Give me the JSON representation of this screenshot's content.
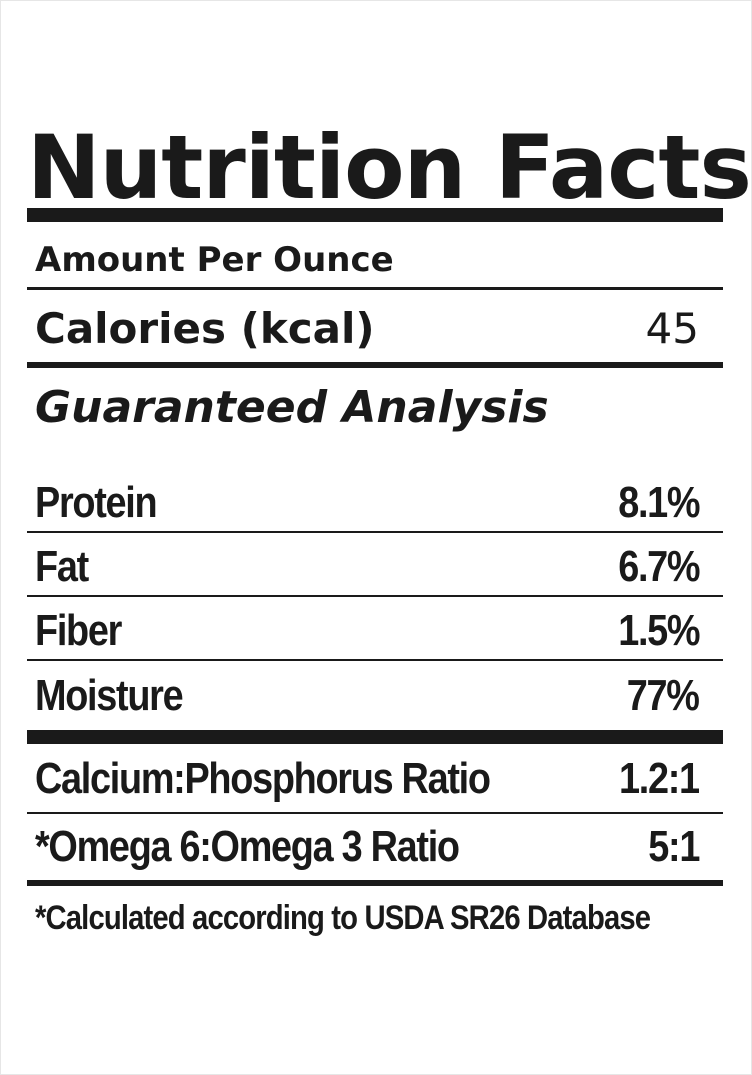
{
  "label": {
    "title": "Nutrition Facts",
    "amount_per": "Amount Per Ounce",
    "calories": {
      "label": "Calories (kcal)",
      "value": "45"
    },
    "section_heading": "Guaranteed Analysis",
    "nutrients": [
      {
        "label": "Protein",
        "value": "8.1%"
      },
      {
        "label": "Fat",
        "value": "6.7%"
      },
      {
        "label": "Fiber",
        "value": "1.5%"
      },
      {
        "label": "Moisture",
        "value": "77%"
      }
    ],
    "ratios": [
      {
        "label": "Calcium:Phosphorus Ratio",
        "value": "1.2:1"
      },
      {
        "label": "*Omega 6:Omega 3 Ratio",
        "value": "5:1"
      }
    ],
    "footnote": "*Calculated according to USDA SR26 Database"
  }
}
